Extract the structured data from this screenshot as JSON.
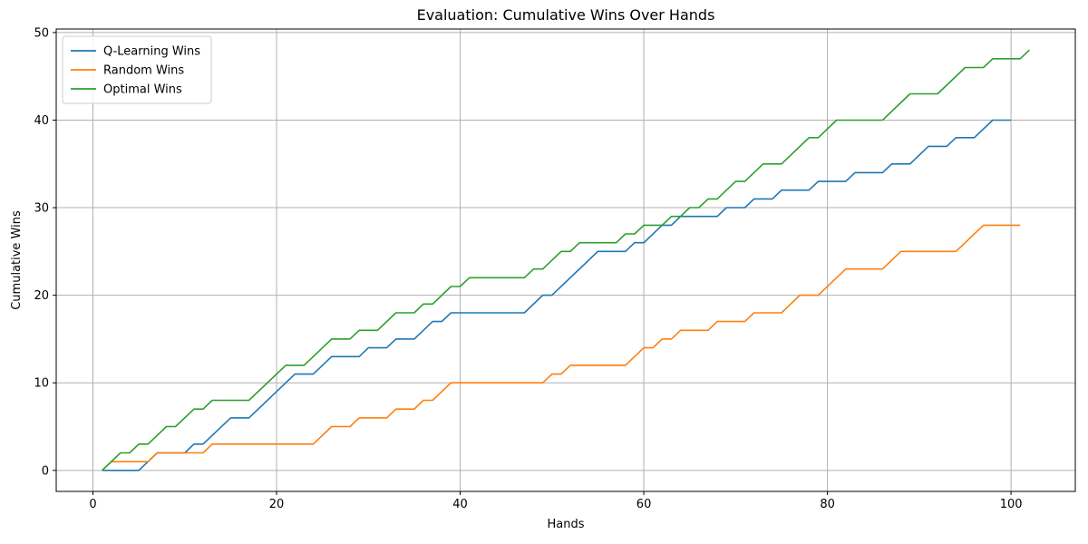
{
  "chart_data": {
    "type": "line",
    "title": "Evaluation: Cumulative Wins Over Hands",
    "xlabel": "Hands",
    "ylabel": "Cumulative Wins",
    "xlim": [
      -4,
      107
    ],
    "ylim": [
      -2.4,
      50.4
    ],
    "xticks": [
      0,
      20,
      40,
      60,
      80,
      100
    ],
    "yticks": [
      0,
      10,
      20,
      30,
      40,
      50
    ],
    "grid": true,
    "legend_position": "top-left",
    "series": [
      {
        "name": "Q-Learning Wins",
        "color": "#1f77b4",
        "points": [
          [
            1,
            0
          ],
          [
            5,
            0
          ],
          [
            7,
            2
          ],
          [
            10,
            2
          ],
          [
            11,
            3
          ],
          [
            12,
            3
          ],
          [
            15,
            6
          ],
          [
            17,
            6
          ],
          [
            22,
            11
          ],
          [
            24,
            11
          ],
          [
            26,
            13
          ],
          [
            29,
            13
          ],
          [
            30,
            14
          ],
          [
            32,
            14
          ],
          [
            33,
            15
          ],
          [
            35,
            15
          ],
          [
            37,
            17
          ],
          [
            38,
            17
          ],
          [
            39,
            18
          ],
          [
            47,
            18
          ],
          [
            49,
            20
          ],
          [
            50,
            20
          ],
          [
            55,
            25
          ],
          [
            58,
            25
          ],
          [
            59,
            26
          ],
          [
            60,
            26
          ],
          [
            62,
            28
          ],
          [
            63,
            28
          ],
          [
            64,
            29
          ],
          [
            68,
            29
          ],
          [
            69,
            30
          ],
          [
            71,
            30
          ],
          [
            72,
            31
          ],
          [
            74,
            31
          ],
          [
            75,
            32
          ],
          [
            78,
            32
          ],
          [
            79,
            33
          ],
          [
            82,
            33
          ],
          [
            83,
            34
          ],
          [
            86,
            34
          ],
          [
            87,
            35
          ],
          [
            89,
            35
          ],
          [
            91,
            37
          ],
          [
            93,
            37
          ],
          [
            94,
            38
          ],
          [
            96,
            38
          ],
          [
            98,
            40
          ],
          [
            100,
            40
          ]
        ]
      },
      {
        "name": "Random Wins",
        "color": "#ff7f0e",
        "points": [
          [
            1,
            0
          ],
          [
            2,
            1
          ],
          [
            6,
            1
          ],
          [
            7,
            2
          ],
          [
            12,
            2
          ],
          [
            13,
            3
          ],
          [
            24,
            3
          ],
          [
            26,
            5
          ],
          [
            28,
            5
          ],
          [
            29,
            6
          ],
          [
            32,
            6
          ],
          [
            33,
            7
          ],
          [
            35,
            7
          ],
          [
            36,
            8
          ],
          [
            37,
            8
          ],
          [
            39,
            10
          ],
          [
            49,
            10
          ],
          [
            50,
            11
          ],
          [
            51,
            11
          ],
          [
            52,
            12
          ],
          [
            58,
            12
          ],
          [
            60,
            14
          ],
          [
            61,
            14
          ],
          [
            62,
            15
          ],
          [
            63,
            15
          ],
          [
            64,
            16
          ],
          [
            67,
            16
          ],
          [
            68,
            17
          ],
          [
            71,
            17
          ],
          [
            72,
            18
          ],
          [
            75,
            18
          ],
          [
            77,
            20
          ],
          [
            79,
            20
          ],
          [
            82,
            23
          ],
          [
            86,
            23
          ],
          [
            88,
            25
          ],
          [
            94,
            25
          ],
          [
            97,
            28
          ],
          [
            101,
            28
          ]
        ]
      },
      {
        "name": "Optimal Wins",
        "color": "#2ca02c",
        "points": [
          [
            1,
            0
          ],
          [
            3,
            2
          ],
          [
            4,
            2
          ],
          [
            5,
            3
          ],
          [
            6,
            3
          ],
          [
            8,
            5
          ],
          [
            9,
            5
          ],
          [
            11,
            7
          ],
          [
            12,
            7
          ],
          [
            13,
            8
          ],
          [
            17,
            8
          ],
          [
            21,
            12
          ],
          [
            23,
            12
          ],
          [
            26,
            15
          ],
          [
            28,
            15
          ],
          [
            29,
            16
          ],
          [
            31,
            16
          ],
          [
            33,
            18
          ],
          [
            35,
            18
          ],
          [
            36,
            19
          ],
          [
            37,
            19
          ],
          [
            39,
            21
          ],
          [
            40,
            21
          ],
          [
            41,
            22
          ],
          [
            47,
            22
          ],
          [
            48,
            23
          ],
          [
            49,
            23
          ],
          [
            51,
            25
          ],
          [
            52,
            25
          ],
          [
            53,
            26
          ],
          [
            57,
            26
          ],
          [
            58,
            27
          ],
          [
            59,
            27
          ],
          [
            60,
            28
          ],
          [
            62,
            28
          ],
          [
            63,
            29
          ],
          [
            64,
            29
          ],
          [
            65,
            30
          ],
          [
            66,
            30
          ],
          [
            67,
            31
          ],
          [
            68,
            31
          ],
          [
            70,
            33
          ],
          [
            71,
            33
          ],
          [
            73,
            35
          ],
          [
            75,
            35
          ],
          [
            78,
            38
          ],
          [
            79,
            38
          ],
          [
            81,
            40
          ],
          [
            86,
            40
          ],
          [
            89,
            43
          ],
          [
            92,
            43
          ],
          [
            95,
            46
          ],
          [
            97,
            46
          ],
          [
            98,
            47
          ],
          [
            101,
            47
          ],
          [
            102,
            48
          ]
        ]
      }
    ]
  }
}
